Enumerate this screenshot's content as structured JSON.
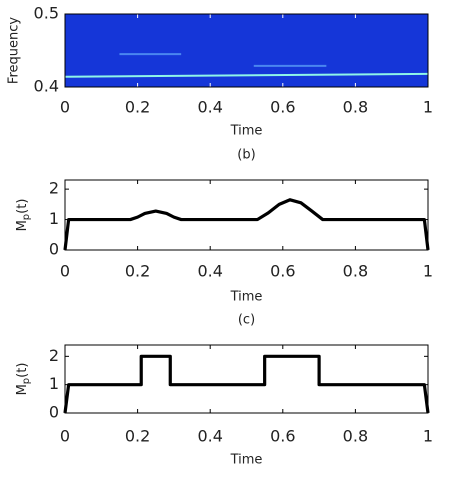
{
  "chart_data": [
    {
      "type": "spectrogram",
      "background": "#1536d8",
      "xlabel": "Time",
      "ylabel": "Frequency",
      "caption": "(b)",
      "xlim": [
        0,
        1
      ],
      "xticks": [
        0,
        0.2,
        0.4,
        0.6,
        0.8,
        1
      ],
      "ylim": [
        0.4,
        0.5
      ],
      "yticks": [
        0.4,
        0.5
      ],
      "ridges": [
        {
          "x": [
            0,
            1
          ],
          "values": [
            0.414,
            0.418
          ],
          "color": "#8ff5e8"
        },
        {
          "x": [
            0.15,
            0.32
          ],
          "values": [
            0.445,
            0.445
          ],
          "color": "#4a86f0"
        },
        {
          "x": [
            0.52,
            0.72
          ],
          "values": [
            0.429,
            0.429
          ],
          "color": "#4a86f0"
        }
      ]
    },
    {
      "type": "line",
      "xlabel": "Time",
      "ylabel": {
        "text": "M",
        "subscript": "p",
        "suffix": "(t)"
      },
      "caption": "(c)",
      "xlim": [
        0,
        1
      ],
      "xticks": [
        0,
        0.2,
        0.4,
        0.6,
        0.8,
        1
      ],
      "ylim": [
        0,
        2.3
      ],
      "yticks": [
        0,
        1,
        2
      ],
      "series": [
        {
          "color": "#000000",
          "x": [
            0,
            0.01,
            0.18,
            0.2,
            0.22,
            0.25,
            0.28,
            0.3,
            0.32,
            0.53,
            0.56,
            0.59,
            0.62,
            0.65,
            0.68,
            0.71,
            0.99,
            1
          ],
          "values": [
            0,
            1,
            1,
            1.08,
            1.2,
            1.28,
            1.2,
            1.08,
            1,
            1,
            1.22,
            1.5,
            1.65,
            1.55,
            1.28,
            1,
            1,
            0
          ]
        }
      ]
    },
    {
      "type": "line",
      "xlabel": "Time",
      "ylabel": {
        "text": "M",
        "subscript": "p",
        "suffix": "(t)"
      },
      "xlim": [
        0,
        1
      ],
      "xticks": [
        0,
        0.2,
        0.4,
        0.6,
        0.8,
        1
      ],
      "ylim": [
        0,
        2.4
      ],
      "yticks": [
        0,
        1,
        2
      ],
      "series": [
        {
          "color": "#000000",
          "x": [
            0,
            0.01,
            0.21,
            0.21,
            0.29,
            0.29,
            0.55,
            0.55,
            0.7,
            0.7,
            0.99,
            1
          ],
          "values": [
            0,
            1,
            1,
            2,
            2,
            1,
            1,
            2,
            2,
            1,
            1,
            0
          ]
        }
      ]
    }
  ]
}
